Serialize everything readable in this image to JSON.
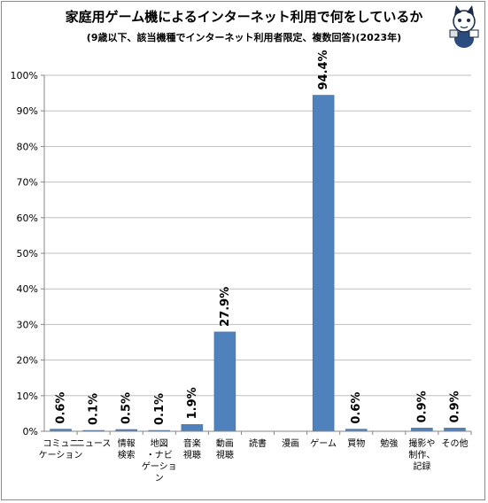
{
  "title": "家庭用ゲーム機によるインターネット利用で何をしているか",
  "subtitle": "(9歳以下、該当機種でインターネット利用者限定、複数回答)(2023年)",
  "colors": {
    "bar": "#4f81bd",
    "bar_edge": "#3a6aa0",
    "grid": "#bfbfbf",
    "axis": "#868686"
  },
  "chart_data": {
    "type": "bar",
    "categories": [
      "コミュニケーション",
      "ニュース",
      "情報検索",
      "地図・ナビゲーション",
      "音楽視聴",
      "動画視聴",
      "読書",
      "漫画",
      "ゲーム",
      "買物",
      "勉強",
      "撮影や制作、記録",
      "その他"
    ],
    "category_lines": [
      [
        "コミュニ",
        "ケーション"
      ],
      [
        "ニュース"
      ],
      [
        "情報",
        "検索"
      ],
      [
        "地図",
        "・ナビ",
        "ゲーショ",
        "ン"
      ],
      [
        "音楽",
        "視聴"
      ],
      [
        "動画",
        "視聴"
      ],
      [
        "読書"
      ],
      [
        "漫画"
      ],
      [
        "ゲーム"
      ],
      [
        "買物"
      ],
      [
        "勉強"
      ],
      [
        "撮影や",
        "制作、",
        "記録"
      ],
      [
        "その他"
      ]
    ],
    "values": [
      0.6,
      0.1,
      0.5,
      0.1,
      1.9,
      27.9,
      null,
      null,
      94.4,
      0.6,
      null,
      0.9,
      0.9
    ],
    "data_labels": [
      "0.6%",
      "0.1%",
      "0.5%",
      "0.1%",
      "1.9%",
      "27.9%",
      "",
      "",
      "94.4%",
      "0.6%",
      "",
      "0.9%",
      "0.9%"
    ],
    "yticks": [
      "0%",
      "10%",
      "20%",
      "30%",
      "40%",
      "50%",
      "60%",
      "70%",
      "80%",
      "90%",
      "100%"
    ],
    "ylim": [
      0,
      100
    ],
    "grid": true,
    "legend": "none"
  }
}
